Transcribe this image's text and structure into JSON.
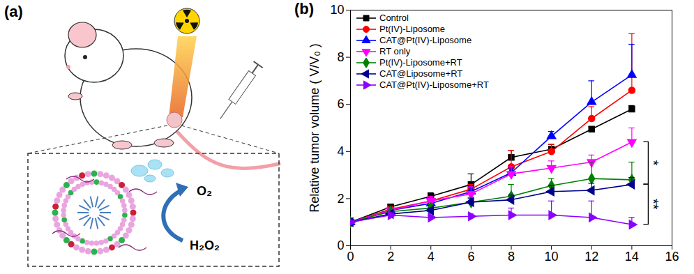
{
  "diagram": {
    "label": "(a)",
    "reaction": {
      "product": "O₂",
      "substrate": "H₂O₂"
    }
  },
  "chart_data": {
    "type": "line",
    "panel_label": "(b)",
    "y_label": "Relative tumor volume ( V/V₀ )",
    "x": [
      0,
      2,
      4,
      6,
      8,
      10,
      12,
      14
    ],
    "xlim": [
      0,
      16
    ],
    "xticks": [
      0,
      2,
      4,
      6,
      8,
      10,
      12,
      14,
      16
    ],
    "ylim": [
      0,
      10
    ],
    "yticks": [
      0,
      2,
      4,
      6,
      8,
      10
    ],
    "legend": "top-left",
    "line_style": "solid",
    "series": [
      {
        "name": "Control",
        "color": "#000000",
        "marker": "square",
        "values": [
          1,
          1.65,
          2.1,
          2.6,
          3.75,
          4.1,
          4.95,
          5.8
        ],
        "errors": [
          0,
          0.1,
          0.15,
          0.45,
          0.3,
          0.2,
          0.1,
          0.15
        ]
      },
      {
        "name": "Pt(IV)-Liposome",
        "color": "#ff0000",
        "marker": "circle",
        "values": [
          1,
          1.55,
          1.9,
          2.4,
          3.35,
          4.0,
          5.4,
          6.6
        ],
        "errors": [
          0,
          0.1,
          0.15,
          0.2,
          0.7,
          0.3,
          0.5,
          2.4
        ]
      },
      {
        "name": "CAT@Pt(IV)-Liposome",
        "color": "#0000ff",
        "marker": "triangle-up",
        "values": [
          1,
          1.5,
          1.8,
          2.3,
          3.1,
          4.65,
          6.1,
          7.25
        ],
        "errors": [
          0,
          0.1,
          0.1,
          0.2,
          0.2,
          0.2,
          0.9,
          1.3
        ]
      },
      {
        "name": "RT only",
        "color": "#ff00ff",
        "marker": "triangle-down",
        "values": [
          1,
          1.5,
          1.9,
          2.2,
          3.05,
          3.3,
          3.55,
          4.4
        ],
        "errors": [
          0,
          0.1,
          0.2,
          0.3,
          0.3,
          0.3,
          0.3,
          0.6
        ]
      },
      {
        "name": "Pt(IV)-Liposome+RT",
        "color": "#008000",
        "marker": "diamond",
        "values": [
          1,
          1.45,
          1.6,
          1.85,
          2.1,
          2.55,
          2.85,
          2.8
        ],
        "errors": [
          0,
          0.1,
          0.15,
          0.2,
          0.5,
          0.3,
          0.7,
          0.75
        ]
      },
      {
        "name": "CAT@Liposome+RT",
        "color": "#00008b",
        "marker": "triangle-left",
        "values": [
          1,
          1.35,
          1.5,
          1.85,
          1.95,
          2.3,
          2.35,
          2.6
        ],
        "errors": [
          0,
          0.1,
          0.1,
          0.15,
          0.2,
          0.25,
          0.3,
          0.3
        ]
      },
      {
        "name": "CAT@Pt(IV)-Liposome+RT",
        "color": "#8b00ff",
        "marker": "triangle-right",
        "values": [
          1,
          1.3,
          1.2,
          1.25,
          1.3,
          1.3,
          1.2,
          0.9
        ],
        "errors": [
          0,
          0.1,
          0.1,
          0.1,
          0.3,
          0.6,
          0.7,
          0.3
        ]
      }
    ],
    "annotations": [
      {
        "text": "*",
        "x": 14,
        "y1": 4.4,
        "y2": 2.6
      },
      {
        "text": "**",
        "x": 14,
        "y1": 2.6,
        "y2": 0.9
      }
    ]
  }
}
